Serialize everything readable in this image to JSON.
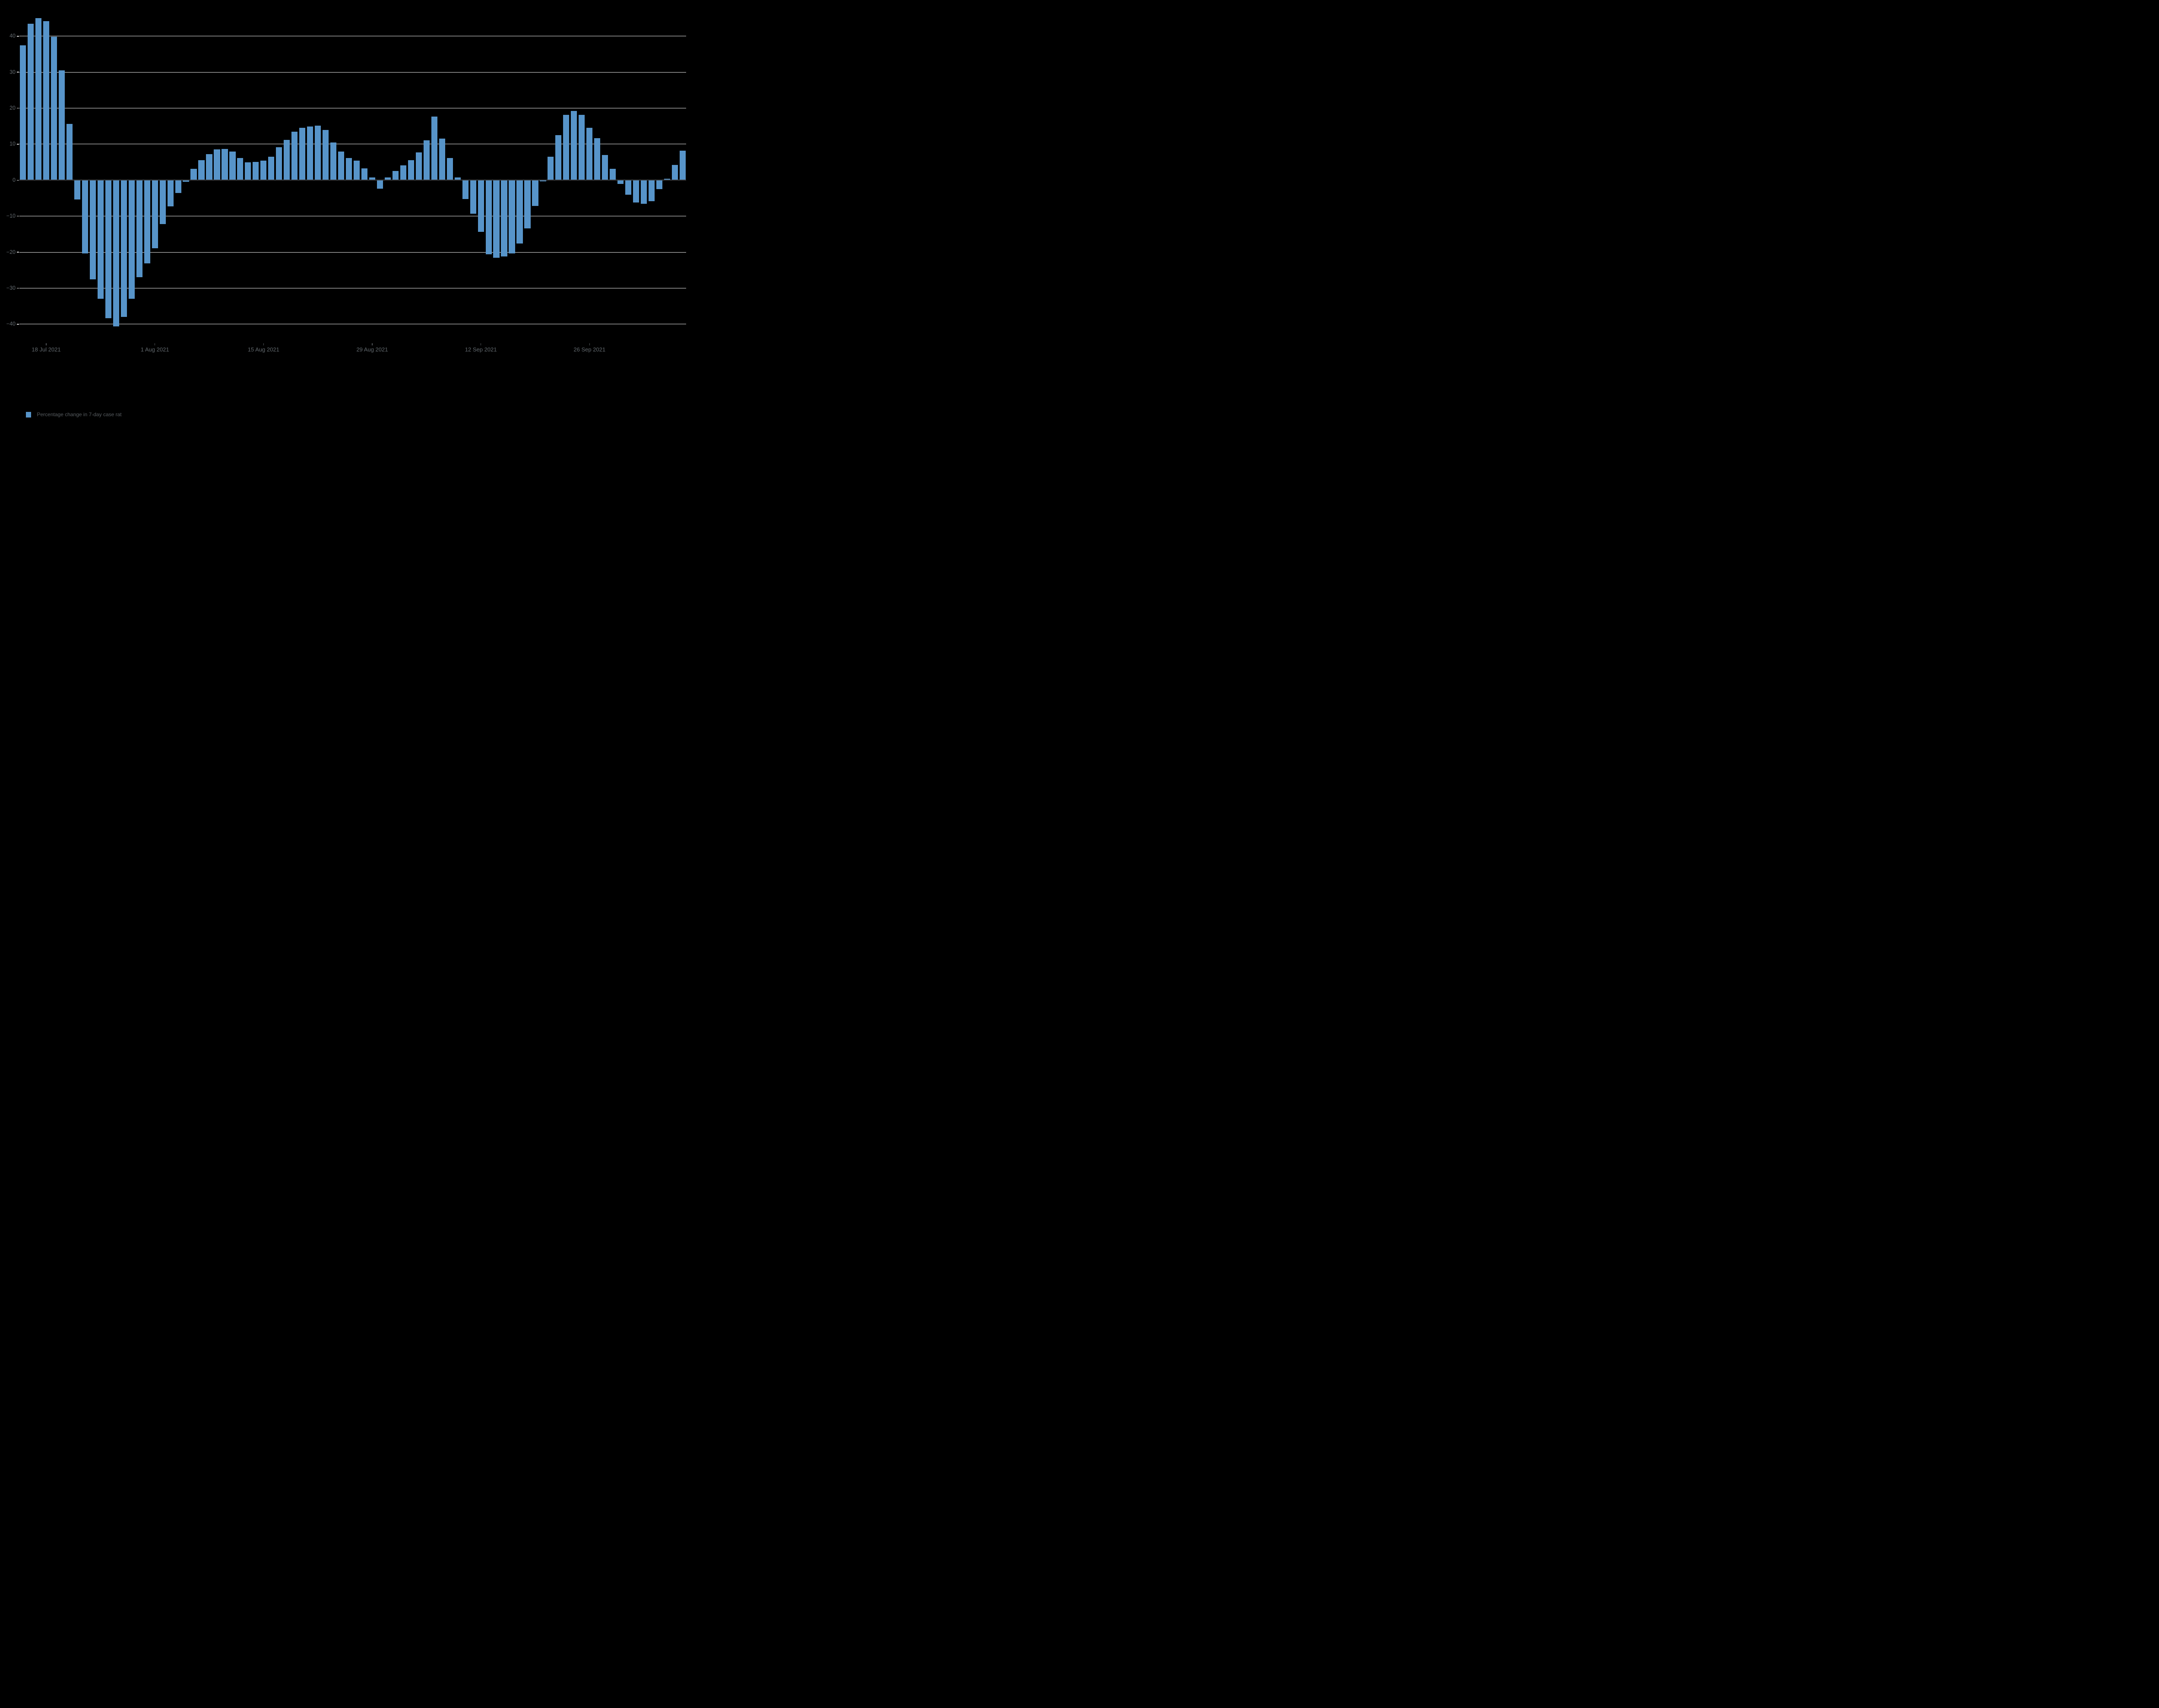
{
  "chart_data": {
    "type": "bar",
    "title": "",
    "legend_label": "Percentage change in 7-day case rat",
    "legend_position": "bottom-left",
    "grid": true,
    "ylim": [
      -45,
      47
    ],
    "y_ticks": [
      {
        "value": 40,
        "label": "40"
      },
      {
        "value": 30,
        "label": "30"
      },
      {
        "value": 20,
        "label": "20"
      },
      {
        "value": 10,
        "label": "10"
      },
      {
        "value": 0,
        "label": "0"
      },
      {
        "value": -10,
        "label": "−10"
      },
      {
        "value": -20,
        "label": "−20"
      },
      {
        "value": -30,
        "label": "−30"
      },
      {
        "value": -40,
        "label": "−40"
      }
    ],
    "x_ticks": [
      {
        "index": 3,
        "label": "18 Jul 2021"
      },
      {
        "index": 17,
        "label": "1 Aug 2021"
      },
      {
        "index": 31,
        "label": "15 Aug 2021"
      },
      {
        "index": 45,
        "label": "29 Aug 2021"
      },
      {
        "index": 59,
        "label": "12 Sep 2021"
      },
      {
        "index": 73,
        "label": "26 Sep 2021"
      }
    ],
    "categories": [
      "15 Jul 2021",
      "16 Jul 2021",
      "17 Jul 2021",
      "18 Jul 2021",
      "19 Jul 2021",
      "20 Jul 2021",
      "21 Jul 2021",
      "22 Jul 2021",
      "23 Jul 2021",
      "24 Jul 2021",
      "25 Jul 2021",
      "26 Jul 2021",
      "27 Jul 2021",
      "28 Jul 2021",
      "29 Jul 2021",
      "30 Jul 2021",
      "31 Jul 2021",
      "1 Aug 2021",
      "2 Aug 2021",
      "3 Aug 2021",
      "4 Aug 2021",
      "5 Aug 2021",
      "6 Aug 2021",
      "7 Aug 2021",
      "8 Aug 2021",
      "9 Aug 2021",
      "10 Aug 2021",
      "11 Aug 2021",
      "12 Aug 2021",
      "13 Aug 2021",
      "14 Aug 2021",
      "15 Aug 2021",
      "16 Aug 2021",
      "17 Aug 2021",
      "18 Aug 2021",
      "19 Aug 2021",
      "20 Aug 2021",
      "21 Aug 2021",
      "22 Aug 2021",
      "23 Aug 2021",
      "24 Aug 2021",
      "25 Aug 2021",
      "26 Aug 2021",
      "27 Aug 2021",
      "28 Aug 2021",
      "29 Aug 2021",
      "30 Aug 2021",
      "31 Aug 2021",
      "1 Sep 2021",
      "2 Sep 2021",
      "3 Sep 2021",
      "4 Sep 2021",
      "5 Sep 2021",
      "6 Sep 2021",
      "7 Sep 2021",
      "8 Sep 2021",
      "9 Sep 2021",
      "10 Sep 2021",
      "11 Sep 2021",
      "12 Sep 2021",
      "13 Sep 2021",
      "14 Sep 2021",
      "15 Sep 2021",
      "16 Sep 2021",
      "17 Sep 2021",
      "18 Sep 2021",
      "19 Sep 2021",
      "20 Sep 2021",
      "21 Sep 2021",
      "22 Sep 2021",
      "23 Sep 2021",
      "24 Sep 2021",
      "25 Sep 2021",
      "26 Sep 2021",
      "27 Sep 2021",
      "28 Sep 2021",
      "29 Sep 2021",
      "30 Sep 2021",
      "1 Oct 2021",
      "2 Oct 2021",
      "3 Oct 2021",
      "4 Oct 2021",
      "5 Oct 2021",
      "6 Oct 2021",
      "7 Oct 2021",
      "8 Oct 2021"
    ],
    "series": [
      {
        "name": "Percentage change in 7-day case rat",
        "values": [
          37.4,
          43.5,
          45.0,
          44.2,
          39.8,
          30.5,
          15.6,
          -5.4,
          -20.3,
          -27.5,
          -33.0,
          -38.3,
          -40.6,
          -38.0,
          -33.0,
          -27.0,
          -23.1,
          -18.9,
          -12.2,
          -7.3,
          -3.6,
          -0.5,
          3.1,
          5.5,
          7.2,
          8.5,
          8.7,
          8.0,
          6.2,
          4.9,
          5.1,
          5.4,
          6.5,
          9.1,
          11.2,
          13.5,
          14.6,
          14.9,
          15.1,
          13.9,
          10.5,
          7.9,
          6.2,
          5.4,
          3.3,
          0.7,
          -2.4,
          0.7,
          2.6,
          4.1,
          5.5,
          7.7,
          11.1,
          17.7,
          11.5,
          6.1,
          0.8,
          -5.2,
          -9.3,
          -14.3,
          -20.6,
          -21.5,
          -21.2,
          -20.3,
          -17.6,
          -13.4,
          -7.2,
          -0.3,
          6.5,
          12.5,
          18.1,
          19.2,
          18.1,
          14.6,
          11.7,
          7.0,
          3.2,
          -1.0,
          -4.1,
          -6.2,
          -6.6,
          -5.9,
          -2.5,
          0.4,
          4.2,
          8.2
        ]
      }
    ],
    "colors": {
      "background": "#000000",
      "bar": "#5794c9",
      "gridline": "#e7e7e7",
      "zero_line": "#3f4245",
      "axis_label": "#62696e",
      "y_tick_mark": "#dcdcdc",
      "x_tick_mark": "#53575a",
      "legend_text": "#575c60"
    }
  }
}
